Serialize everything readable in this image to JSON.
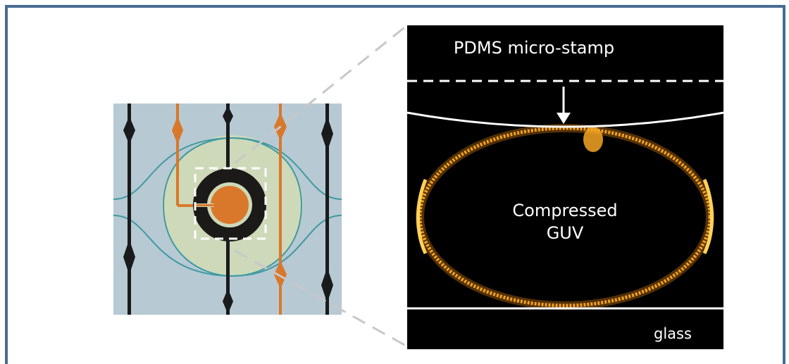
{
  "panel": {
    "border_color": "#4a6a94",
    "microscope": {
      "substrate_color": "#b7c9d3",
      "dark_trace_color": "#1a1a1c",
      "orange_trace_color": "#d9782a",
      "chamber_color": "#cdd9b8",
      "channel_line_color": "#3f9aa2"
    },
    "fluorescence": {
      "background_color": "#000000",
      "membrane_color": "#f0a020",
      "stamp_label": "PDMS micro-stamp",
      "guv_label_line1": "Compressed",
      "guv_label_line2": "GUV",
      "glass_label": "glass"
    }
  }
}
